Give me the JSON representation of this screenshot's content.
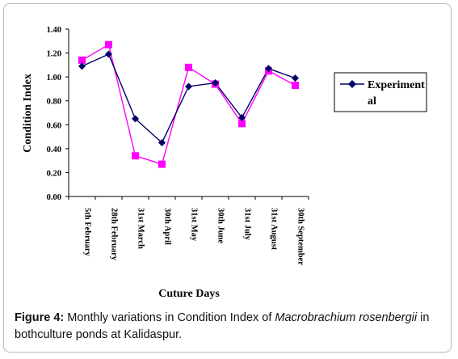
{
  "chart_data": {
    "type": "line",
    "categories": [
      "5th February",
      "28th February",
      "31st March",
      "30th April",
      "31st May",
      "30th June",
      "31st July",
      "31st August",
      "30th September"
    ],
    "series": [
      {
        "name": "Experimental",
        "color": "#000066",
        "marker": "diamond",
        "values": [
          1.09,
          1.19,
          0.65,
          0.45,
          0.92,
          0.95,
          0.66,
          1.07,
          0.99
        ]
      },
      {
        "name": "",
        "color": "#ff00ff",
        "marker": "square",
        "values": [
          1.14,
          1.27,
          0.34,
          0.27,
          1.08,
          0.94,
          0.61,
          1.05,
          0.93
        ]
      }
    ],
    "y_ticks": [
      "0.00",
      "0.20",
      "0.40",
      "0.60",
      "0.80",
      "1.00",
      "1.20",
      "1.40"
    ],
    "ylim": [
      0,
      1.4
    ],
    "xlabel": "Cuture Days",
    "ylabel": "Condition Index",
    "legend": {
      "line1": "Experiment",
      "line2": "al",
      "placement": "right"
    },
    "grid": false
  },
  "caption": {
    "figure_label": "Figure 4:",
    "text_before": " Monthly variations in Condition Index of ",
    "species": "Macrobrachium rosenbergii",
    "text_after": " in bothculture ponds at Kalidaspur."
  }
}
